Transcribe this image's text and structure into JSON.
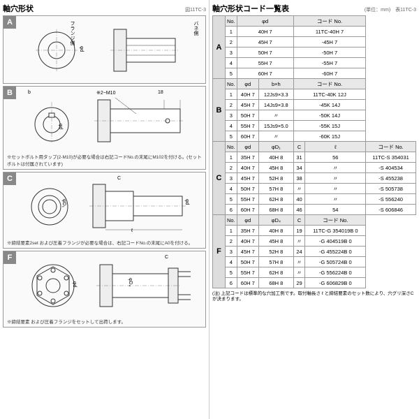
{
  "left_title": "軸穴形状",
  "left_sub": "図11TC-3",
  "right_title": "軸穴形状コード一覧表",
  "right_sub": "表11TC-3",
  "right_unit": "(単位：mm)",
  "sections": {
    "A": {
      "badge": "A",
      "labels": {
        "flange": "フランジ側",
        "spring": "バネ側",
        "phid": "φd"
      }
    },
    "B": {
      "badge": "B",
      "note": "※セットボルト用タップ(2-M10)が必要な場合は右記コードNo.の末尾にM102を付ける。(セットボルトは付属されています)",
      "labels": {
        "b": "b",
        "t": "t",
        "m10": "※2−M10",
        "d18": "18",
        "phid": "φd"
      }
    },
    "C": {
      "badge": "C",
      "note": "※締結要素2set および圧着フランジが必要な場合は、右記コードNo.の末尾にA0を付ける。",
      "labels": {
        "c": "C",
        "l": "ℓ",
        "phid": "φd",
        "phid1": "φD₁"
      }
    },
    "F": {
      "badge": "F",
      "note": "※締結要素 および圧着フランジをセットして出荷します。",
      "labels": {
        "c": "C",
        "phid": "φd",
        "phid4": "φD₄"
      }
    }
  },
  "tableA": {
    "headers": [
      "No.",
      "φd",
      "コード No."
    ],
    "group": "A",
    "rows": [
      [
        "1",
        "40H 7",
        "11TC-40H 7"
      ],
      [
        "2",
        "45H 7",
        "-45H 7"
      ],
      [
        "3",
        "50H 7",
        "-50H 7"
      ],
      [
        "4",
        "55H 7",
        "-55H 7"
      ],
      [
        "5",
        "60H 7",
        "-60H 7"
      ]
    ]
  },
  "tableB": {
    "headers": [
      "No.",
      "φd",
      "b×h",
      "コード No."
    ],
    "group": "B",
    "rows": [
      [
        "1",
        "40H 7",
        "12Js9×3.3",
        "11TC-40K 12J"
      ],
      [
        "2",
        "45H 7",
        "14Js9×3.8",
        "-45K 14J"
      ],
      [
        "3",
        "50H 7",
        "〃",
        "-50K 14J"
      ],
      [
        "4",
        "55H 7",
        "15Js9×5.0",
        "-55K 15J"
      ],
      [
        "5",
        "60H 7",
        "〃",
        "-60K 15J"
      ]
    ]
  },
  "tableC": {
    "headers": [
      "No.",
      "φd",
      "φD₁",
      "C",
      "ℓ",
      "コード No."
    ],
    "group": "C",
    "rows": [
      [
        "1",
        "35H 7",
        "40H 8",
        "31",
        "56",
        "11TC-S 354031"
      ],
      [
        "2",
        "40H 7",
        "45H 8",
        "34",
        "〃",
        "-S 404534"
      ],
      [
        "3",
        "45H 7",
        "52H 8",
        "38",
        "〃",
        "-S 455238"
      ],
      [
        "4",
        "50H 7",
        "57H 8",
        "〃",
        "〃",
        "-S 505738"
      ],
      [
        "5",
        "55H 7",
        "62H 8",
        "40",
        "〃",
        "-S 556240"
      ],
      [
        "6",
        "60H 7",
        "68H 8",
        "46",
        "54",
        "-S 606846"
      ]
    ]
  },
  "tableF": {
    "headers": [
      "No.",
      "φd",
      "φD₄",
      "C",
      "コード No."
    ],
    "group": "F",
    "rows": [
      [
        "1",
        "35H 7",
        "40H 8",
        "19",
        "11TC-G 354019B 0"
      ],
      [
        "2",
        "40H 7",
        "45H 8",
        "〃",
        "-G 404519B 0"
      ],
      [
        "3",
        "45H 7",
        "52H 8",
        "24",
        "-G 455224B 0"
      ],
      [
        "4",
        "50H 7",
        "57H 8",
        "〃",
        "-G 505724B 0"
      ],
      [
        "5",
        "55H 7",
        "62H 8",
        "〃",
        "-G 556224B 0"
      ],
      [
        "6",
        "60H 7",
        "68H 8",
        "29",
        "-G 606829B 0"
      ]
    ]
  },
  "footnote": "(注) 上記コードは標準的な穴加工例です。取付軸長さ ℓ と締結要素のセット数により、穴グリ深さCが決まります。"
}
